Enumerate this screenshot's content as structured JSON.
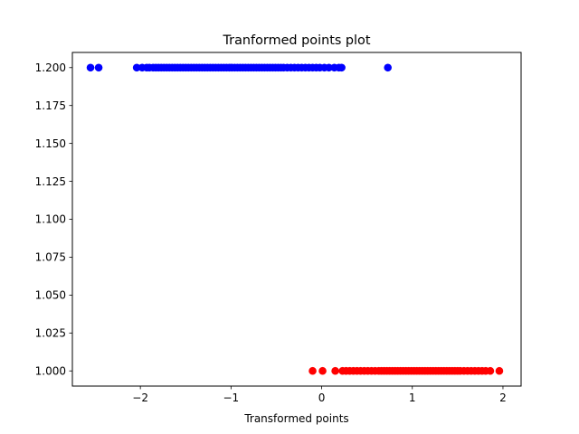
{
  "chart_data": {
    "type": "scatter",
    "title": "Tranformed points plot",
    "xlabel": "Transformed points",
    "ylabel": "",
    "xlim": [
      -2.75,
      2.2
    ],
    "ylim": [
      0.99,
      1.21
    ],
    "xticks": [
      {
        "value": -2,
        "label": "−2"
      },
      {
        "value": -1,
        "label": "−1"
      },
      {
        "value": 0,
        "label": "0"
      },
      {
        "value": 1,
        "label": "1"
      },
      {
        "value": 2,
        "label": "2"
      }
    ],
    "yticks": [
      {
        "value": 1.0,
        "label": "1.000"
      },
      {
        "value": 1.025,
        "label": "1.025"
      },
      {
        "value": 1.05,
        "label": "1.050"
      },
      {
        "value": 1.075,
        "label": "1.075"
      },
      {
        "value": 1.1,
        "label": "1.100"
      },
      {
        "value": 1.125,
        "label": "1.125"
      },
      {
        "value": 1.15,
        "label": "1.150"
      },
      {
        "value": 1.175,
        "label": "1.175"
      },
      {
        "value": 1.2,
        "label": "1.200"
      }
    ],
    "grid": false,
    "series": [
      {
        "color": "#0000ff",
        "y": 1.2,
        "x": [
          -2.55,
          -2.46,
          -2.04,
          -1.98,
          -1.93,
          -1.9,
          -1.86,
          -1.83,
          -1.8,
          -1.77,
          -1.74,
          -1.71,
          -1.68,
          -1.65,
          -1.62,
          -1.59,
          -1.56,
          -1.53,
          -1.5,
          -1.47,
          -1.44,
          -1.41,
          -1.38,
          -1.35,
          -1.32,
          -1.29,
          -1.26,
          -1.23,
          -1.2,
          -1.17,
          -1.14,
          -1.11,
          -1.08,
          -1.05,
          -1.02,
          -0.99,
          -0.96,
          -0.93,
          -0.9,
          -0.87,
          -0.84,
          -0.81,
          -0.78,
          -0.75,
          -0.72,
          -0.69,
          -0.66,
          -0.63,
          -0.6,
          -0.57,
          -0.54,
          -0.51,
          -0.48,
          -0.45,
          -0.42,
          -0.38,
          -0.34,
          -0.3,
          -0.26,
          -0.22,
          -0.18,
          -0.14,
          -0.1,
          -0.06,
          -0.02,
          0.03,
          0.08,
          0.14,
          0.19,
          0.22,
          0.73
        ]
      },
      {
        "color": "#ff0000",
        "y": 1.0,
        "x": [
          -0.1,
          0.01,
          0.15,
          0.23,
          0.27,
          0.31,
          0.35,
          0.39,
          0.43,
          0.47,
          0.51,
          0.55,
          0.59,
          0.63,
          0.66,
          0.69,
          0.72,
          0.75,
          0.78,
          0.81,
          0.84,
          0.87,
          0.9,
          0.93,
          0.96,
          0.99,
          1.02,
          1.05,
          1.08,
          1.11,
          1.14,
          1.17,
          1.2,
          1.23,
          1.26,
          1.29,
          1.32,
          1.35,
          1.38,
          1.41,
          1.44,
          1.47,
          1.5,
          1.53,
          1.57,
          1.61,
          1.65,
          1.69,
          1.73,
          1.77,
          1.81,
          1.86,
          1.96
        ]
      }
    ]
  }
}
